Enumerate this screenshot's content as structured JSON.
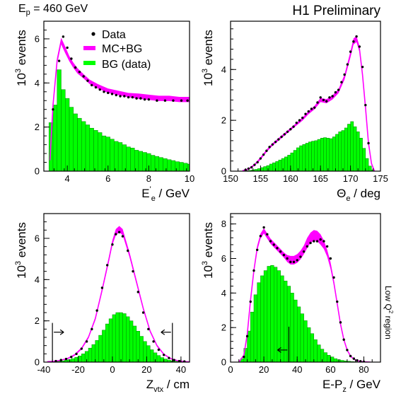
{
  "header": {
    "beam_label": "E",
    "beam_sub": "p",
    "beam_value": " = 460 GeV",
    "preliminary": "H1 Preliminary"
  },
  "side_note": {
    "pre": "Low Q",
    "sup": "2",
    "post": " region"
  },
  "legend": {
    "data": "Data",
    "mc": "MC+BG",
    "bg": "BG (data)"
  },
  "colors": {
    "mc_band": "#ff00ff",
    "bg_fill": "#00ff00",
    "bg_edge": "#008800",
    "data_marker": "#000000"
  },
  "chart_data": [
    {
      "type": "bar",
      "id": "ee",
      "ylabel": {
        "sup": "3",
        "text": "events"
      },
      "xlabel": {
        "main": "E",
        "sup": "'",
        "sub": "e",
        "post": " / GeV"
      },
      "xlim": [
        2.85,
        10
      ],
      "ylim": [
        0,
        6.8
      ],
      "xticks": [
        4,
        6,
        8,
        10
      ],
      "yticks": [
        0,
        2,
        4,
        6
      ],
      "data": {
        "x": [
          3.3,
          3.6,
          3.8,
          4.0,
          4.2,
          4.4,
          4.6,
          4.8,
          5.0,
          5.2,
          5.4,
          5.6,
          5.8,
          6.0,
          6.2,
          6.4,
          6.6,
          6.8,
          7.0,
          7.2,
          7.4,
          7.6,
          7.8,
          8.0,
          8.4,
          8.8,
          9.2,
          9.6,
          9.9
        ],
        "y": [
          2.8,
          5.0,
          6.1,
          5.6,
          5.1,
          4.7,
          4.5,
          4.3,
          4.1,
          3.9,
          3.8,
          3.7,
          3.6,
          3.55,
          3.5,
          3.45,
          3.4,
          3.4,
          3.35,
          3.35,
          3.3,
          3.3,
          3.25,
          3.25,
          3.2,
          3.2,
          3.2,
          3.2,
          3.2
        ]
      },
      "mc": {
        "x": [
          3.15,
          3.3,
          3.5,
          3.7,
          3.9,
          4.1,
          4.3,
          4.5,
          4.8,
          5.1,
          5.5,
          6.0,
          6.5,
          7.0,
          7.5,
          8.0,
          8.5,
          9.0,
          9.5,
          10.0
        ],
        "y": [
          0.5,
          3.0,
          5.0,
          5.9,
          5.5,
          5.1,
          4.8,
          4.55,
          4.3,
          4.05,
          3.85,
          3.65,
          3.55,
          3.45,
          3.4,
          3.35,
          3.3,
          3.3,
          3.25,
          3.25
        ],
        "err": [
          0.1,
          0.15,
          0.15,
          0.15,
          0.15,
          0.12,
          0.12,
          0.12,
          0.1,
          0.1,
          0.1,
          0.1,
          0.1,
          0.1,
          0.12,
          0.12,
          0.12,
          0.12,
          0.12,
          0.12
        ]
      },
      "bg": {
        "edges": [
          3.1,
          3.3,
          3.5,
          3.7,
          3.9,
          4.1,
          4.3,
          4.5,
          4.7,
          4.9,
          5.1,
          5.3,
          5.5,
          5.7,
          5.9,
          6.1,
          6.3,
          6.5,
          6.7,
          6.9,
          7.1,
          7.3,
          7.5,
          7.7,
          7.9,
          8.1,
          8.3,
          8.5,
          8.7,
          8.9,
          9.1,
          9.3,
          9.5,
          9.7,
          9.9,
          10.0
        ],
        "values": [
          2.2,
          3.0,
          4.6,
          3.7,
          3.3,
          2.9,
          2.6,
          2.4,
          2.25,
          2.1,
          1.95,
          1.85,
          1.75,
          1.6,
          1.55,
          1.45,
          1.35,
          1.3,
          1.2,
          1.1,
          1.05,
          0.95,
          0.9,
          0.85,
          0.8,
          0.72,
          0.67,
          0.62,
          0.57,
          0.52,
          0.48,
          0.43,
          0.4,
          0.36,
          0.32
        ]
      }
    },
    {
      "type": "bar",
      "id": "theta",
      "ylabel": {
        "sup": "3",
        "text": "events"
      },
      "xlabel": {
        "main": "Θ",
        "sup": "",
        "sub": "e",
        "post": " / deg"
      },
      "xlim": [
        150,
        175
      ],
      "ylim": [
        0,
        5.9
      ],
      "xticks": [
        150,
        155,
        160,
        165,
        170,
        175
      ],
      "yticks": [
        0,
        2,
        4
      ],
      "data": {
        "x": [
          152.5,
          153,
          153.5,
          154,
          154.5,
          155,
          155.5,
          156,
          156.5,
          157,
          157.5,
          158,
          158.5,
          159,
          159.5,
          160,
          160.5,
          161,
          161.5,
          162,
          162.5,
          163,
          163.5,
          164,
          164.5,
          165,
          165.5,
          166,
          166.5,
          167,
          167.5,
          168,
          168.5,
          169,
          169.5,
          170,
          170.5,
          171,
          171.5,
          172,
          172.5,
          173
        ],
        "y": [
          0.05,
          0.1,
          0.15,
          0.25,
          0.35,
          0.5,
          0.65,
          0.8,
          0.95,
          1.05,
          1.15,
          1.25,
          1.35,
          1.45,
          1.55,
          1.65,
          1.75,
          1.9,
          2.0,
          2.1,
          2.25,
          2.35,
          2.45,
          2.5,
          2.7,
          2.9,
          2.8,
          2.75,
          2.9,
          2.95,
          3.1,
          3.2,
          3.5,
          3.8,
          4.2,
          4.7,
          5.1,
          5.3,
          4.9,
          4.1,
          2.6,
          1.1
        ]
      },
      "mc": {
        "x": [
          152,
          153,
          154,
          155,
          156,
          157,
          158,
          159,
          160,
          161,
          162,
          163,
          164,
          165,
          166,
          167,
          168,
          169,
          170,
          170.5,
          171,
          171.5,
          172,
          172.5,
          173,
          173.5,
          174
        ],
        "y": [
          0.02,
          0.08,
          0.25,
          0.5,
          0.8,
          1.05,
          1.25,
          1.45,
          1.65,
          1.85,
          2.05,
          2.3,
          2.5,
          2.8,
          2.75,
          2.9,
          3.15,
          3.7,
          4.6,
          5.1,
          5.2,
          4.8,
          3.8,
          2.5,
          1.1,
          0.3,
          0.0
        ],
        "err": [
          0.02,
          0.03,
          0.04,
          0.05,
          0.05,
          0.05,
          0.05,
          0.05,
          0.05,
          0.05,
          0.06,
          0.06,
          0.07,
          0.08,
          0.08,
          0.08,
          0.08,
          0.1,
          0.12,
          0.12,
          0.12,
          0.12,
          0.1,
          0.08,
          0.05,
          0.03,
          0.01
        ]
      },
      "bg": {
        "edges": [
          152,
          152.5,
          153,
          153.5,
          154,
          154.5,
          155,
          155.5,
          156,
          156.5,
          157,
          157.5,
          158,
          158.5,
          159,
          159.5,
          160,
          160.5,
          161,
          161.5,
          162,
          162.5,
          163,
          163.5,
          164,
          164.5,
          165,
          165.5,
          166,
          166.5,
          167,
          167.5,
          168,
          168.5,
          169,
          169.5,
          170,
          170.5,
          171,
          171.5,
          172,
          172.5,
          173,
          173.5,
          174
        ],
        "values": [
          0.01,
          0.02,
          0.03,
          0.05,
          0.07,
          0.1,
          0.14,
          0.18,
          0.22,
          0.28,
          0.33,
          0.38,
          0.44,
          0.5,
          0.56,
          0.63,
          0.72,
          0.82,
          0.92,
          1.0,
          1.05,
          1.1,
          1.15,
          1.18,
          1.2,
          1.25,
          1.3,
          1.32,
          1.3,
          1.28,
          1.35,
          1.45,
          1.55,
          1.6,
          1.7,
          1.85,
          1.95,
          1.75,
          1.55,
          1.3,
          0.9,
          0.5,
          0.2,
          0.05
        ]
      }
    },
    {
      "type": "bar",
      "id": "zvtx",
      "ylabel": {
        "sup": "3",
        "text": "events"
      },
      "xlabel": {
        "main": "Z",
        "sup": "",
        "sub": "vtx",
        "post": " / cm"
      },
      "xlim": [
        -40,
        45
      ],
      "ylim": [
        0,
        7.2
      ],
      "xticks": [
        -40,
        -20,
        0,
        20,
        40
      ],
      "yticks": [
        0,
        2,
        4,
        6
      ],
      "cuts": [
        -35,
        35
      ],
      "data": {
        "x": [
          -33,
          -30,
          -27,
          -24,
          -21,
          -18,
          -15,
          -12,
          -9,
          -6,
          -3,
          0,
          2,
          4,
          6,
          9,
          12,
          15,
          18,
          21,
          24,
          27,
          30,
          33,
          36,
          39,
          42
        ],
        "y": [
          0.05,
          0.1,
          0.15,
          0.25,
          0.4,
          0.65,
          1.0,
          1.6,
          2.5,
          3.6,
          4.7,
          5.7,
          6.2,
          6.3,
          6.1,
          5.4,
          4.4,
          3.4,
          2.4,
          1.6,
          1.0,
          0.6,
          0.35,
          0.2,
          0.1,
          0.05,
          0.03
        ]
      },
      "mc": {
        "x": [
          -38,
          -34,
          -30,
          -26,
          -22,
          -18,
          -14,
          -10,
          -6,
          -2,
          0,
          2,
          4,
          6,
          10,
          14,
          18,
          22,
          26,
          30,
          34,
          38,
          42,
          45
        ],
        "y": [
          0.02,
          0.04,
          0.09,
          0.18,
          0.35,
          0.66,
          1.2,
          2.1,
          3.5,
          5.0,
          5.8,
          6.3,
          6.45,
          6.3,
          5.2,
          3.9,
          2.6,
          1.5,
          0.8,
          0.38,
          0.17,
          0.07,
          0.03,
          0.01
        ],
        "err": [
          0.01,
          0.01,
          0.02,
          0.03,
          0.04,
          0.05,
          0.06,
          0.08,
          0.1,
          0.12,
          0.12,
          0.15,
          0.15,
          0.15,
          0.12,
          0.1,
          0.08,
          0.06,
          0.05,
          0.03,
          0.02,
          0.01,
          0.01,
          0.01
        ]
      },
      "bg": {
        "edges": [
          -34,
          -32,
          -30,
          -28,
          -26,
          -24,
          -22,
          -20,
          -18,
          -16,
          -14,
          -12,
          -10,
          -8,
          -6,
          -4,
          -2,
          0,
          2,
          4,
          6,
          8,
          10,
          12,
          14,
          16,
          18,
          20,
          22,
          24,
          26,
          28,
          30,
          32,
          34,
          36,
          38,
          40
        ],
        "values": [
          0.02,
          0.04,
          0.06,
          0.09,
          0.12,
          0.17,
          0.23,
          0.3,
          0.4,
          0.52,
          0.68,
          0.85,
          1.05,
          1.3,
          1.55,
          1.85,
          2.1,
          2.3,
          2.4,
          2.4,
          2.35,
          2.2,
          2.0,
          1.75,
          1.5,
          1.25,
          1.0,
          0.8,
          0.6,
          0.45,
          0.32,
          0.22,
          0.15,
          0.1,
          0.06,
          0.04,
          0.02
        ]
      }
    },
    {
      "type": "bar",
      "id": "empz",
      "ylabel": {
        "sup": "3",
        "text": "events"
      },
      "xlabel": {
        "main": "E-P",
        "sup": "",
        "sub": "z",
        "post": " / GeV"
      },
      "xlim": [
        0,
        90
      ],
      "ylim": [
        0,
        8.6
      ],
      "xticks": [
        0,
        20,
        40,
        60,
        80
      ],
      "yticks": [
        0,
        2,
        4,
        6,
        8
      ],
      "cuts": [
        35
      ],
      "data": {
        "x": [
          8,
          10,
          12,
          14,
          16,
          18,
          20,
          22,
          24,
          26,
          28,
          30,
          32,
          34,
          36,
          38,
          40,
          42,
          44,
          46,
          48,
          50,
          52,
          54,
          56,
          58,
          60,
          62,
          64,
          66,
          68,
          70,
          72,
          74,
          76,
          78,
          80
        ],
        "y": [
          0.3,
          1.5,
          3.5,
          5.3,
          6.5,
          7.3,
          7.8,
          7.4,
          7.0,
          6.8,
          6.6,
          6.4,
          6.2,
          6.0,
          5.8,
          5.8,
          5.9,
          6.1,
          6.4,
          6.7,
          6.9,
          7.0,
          7.0,
          7.1,
          7.0,
          6.7,
          6.0,
          4.9,
          3.5,
          2.3,
          1.3,
          0.7,
          0.35,
          0.2,
          0.1,
          0.05,
          0.02
        ]
      },
      "mc": {
        "x": [
          5,
          8,
          10,
          12,
          14,
          16,
          18,
          20,
          22,
          24,
          26,
          28,
          30,
          32,
          34,
          36,
          38,
          40,
          42,
          44,
          46,
          48,
          50,
          52,
          54,
          56,
          58,
          60,
          62,
          64,
          66,
          68,
          70,
          72,
          74,
          76,
          78,
          80,
          84
        ],
        "y": [
          0.0,
          0.4,
          1.6,
          3.6,
          5.3,
          6.6,
          7.3,
          7.6,
          7.3,
          7.0,
          6.8,
          6.6,
          6.4,
          6.2,
          6.0,
          5.9,
          5.9,
          6.0,
          6.2,
          6.5,
          6.9,
          7.2,
          7.35,
          7.3,
          7.1,
          6.8,
          6.3,
          5.6,
          4.6,
          3.4,
          2.2,
          1.3,
          0.7,
          0.35,
          0.17,
          0.08,
          0.04,
          0.02,
          0.0
        ],
        "err": [
          0.0,
          0.05,
          0.1,
          0.1,
          0.12,
          0.15,
          0.15,
          0.15,
          0.15,
          0.15,
          0.15,
          0.15,
          0.15,
          0.15,
          0.2,
          0.25,
          0.25,
          0.25,
          0.25,
          0.25,
          0.3,
          0.3,
          0.3,
          0.3,
          0.3,
          0.25,
          0.2,
          0.2,
          0.15,
          0.12,
          0.1,
          0.08,
          0.05,
          0.03,
          0.02,
          0.01,
          0.01,
          0.0,
          0.0
        ]
      },
      "bg": {
        "edges": [
          6,
          8,
          10,
          12,
          14,
          16,
          18,
          20,
          22,
          24,
          26,
          28,
          30,
          32,
          34,
          36,
          38,
          40,
          42,
          44,
          46,
          48,
          50,
          52,
          54,
          56,
          58,
          60,
          62,
          64,
          66,
          68,
          70,
          72,
          74,
          76,
          78,
          80
        ],
        "values": [
          0.2,
          0.8,
          1.8,
          2.9,
          3.9,
          4.6,
          5.0,
          5.3,
          5.55,
          5.6,
          5.5,
          5.3,
          5.0,
          4.7,
          4.4,
          4.0,
          3.6,
          3.2,
          2.8,
          2.4,
          2.0,
          1.65,
          1.3,
          1.0,
          0.75,
          0.55,
          0.4,
          0.3,
          0.2,
          0.14,
          0.1,
          0.07,
          0.05,
          0.03,
          0.02,
          0.01,
          0.01
        ]
      }
    }
  ]
}
